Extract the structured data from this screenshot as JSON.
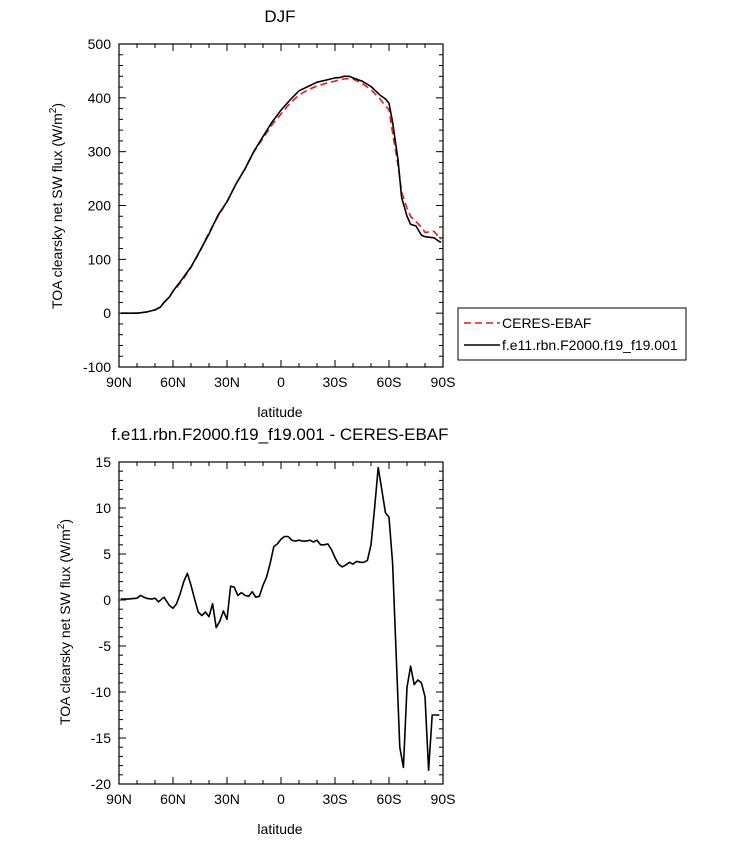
{
  "chart_data": [
    {
      "type": "line",
      "title": "DJF",
      "xlabel": "latitude",
      "ylabel_main": "TOA clearsky net SW flux (W/m",
      "ylabel_sup": "2",
      "ylabel_close": ")",
      "xlim": [
        90,
        -90
      ],
      "ylim": [
        -100,
        500
      ],
      "x_ticks": [
        90,
        60,
        30,
        0,
        -30,
        -60,
        -90
      ],
      "x_tick_labels": [
        "90N",
        "60N",
        "30N",
        "0",
        "30S",
        "60S",
        "90S"
      ],
      "y_ticks": [
        -100,
        0,
        100,
        200,
        300,
        400,
        500
      ],
      "y_tick_labels": [
        "-100",
        "0",
        "100",
        "200",
        "300",
        "400",
        "500"
      ],
      "legend": {
        "placement": "right"
      },
      "series": [
        {
          "name": "CERES-EBAF",
          "color": "#e41a1c",
          "dash": "dashed",
          "x": [
            89,
            85,
            80,
            75,
            70,
            67,
            65,
            62,
            60,
            55,
            50,
            45,
            40,
            35,
            30,
            25,
            20,
            15,
            10,
            5,
            0,
            -5,
            -10,
            -15,
            -20,
            -25,
            -30,
            -33,
            -35,
            -38,
            -40,
            -45,
            -50,
            -55,
            -58,
            -60,
            -62,
            -65,
            -67,
            -70,
            -72,
            -75,
            -78,
            -80,
            -85,
            -88,
            -89
          ],
          "y": [
            0,
            0,
            0,
            2,
            6,
            12,
            20,
            30,
            40,
            60,
            85,
            115,
            150,
            180,
            207,
            240,
            268,
            300,
            325,
            350,
            370,
            390,
            405,
            415,
            422,
            427,
            431,
            434,
            435,
            436,
            435,
            427,
            415,
            398,
            385,
            378,
            335,
            275,
            225,
            195,
            180,
            170,
            160,
            150,
            152,
            140,
            138
          ]
        },
        {
          "name": "f.e11.rbn.F2000.f19_f19.001",
          "color": "#000000",
          "dash": "solid",
          "x": [
            89,
            85,
            80,
            75,
            70,
            67,
            65,
            62,
            60,
            55,
            50,
            45,
            40,
            35,
            30,
            25,
            20,
            15,
            10,
            5,
            0,
            -5,
            -10,
            -15,
            -20,
            -25,
            -30,
            -33,
            -35,
            -38,
            -40,
            -45,
            -50,
            -55,
            -58,
            -60,
            -62,
            -65,
            -67,
            -70,
            -72,
            -75,
            -78,
            -80,
            -85,
            -88,
            -89
          ],
          "y": [
            0,
            0,
            0,
            2,
            6,
            11,
            20,
            30,
            41,
            63,
            86,
            116,
            147,
            182,
            207,
            240,
            268,
            301,
            328,
            355,
            377,
            396,
            413,
            421,
            429,
            433,
            437,
            438,
            440,
            440,
            437,
            431,
            421,
            405,
            398,
            390,
            355,
            285,
            215,
            180,
            165,
            162,
            145,
            142,
            140,
            133,
            132
          ]
        }
      ]
    },
    {
      "type": "line",
      "title": "f.e11.rbn.F2000.f19_f19.001 - CERES-EBAF",
      "xlabel": "latitude",
      "ylabel_main": "TOA clearsky net SW flux (W/m",
      "ylabel_sup": "2",
      "ylabel_close": ")",
      "xlim": [
        90,
        -90
      ],
      "ylim": [
        -20,
        15
      ],
      "x_ticks": [
        90,
        60,
        30,
        0,
        -30,
        -60,
        -90
      ],
      "x_tick_labels": [
        "90N",
        "60N",
        "30N",
        "0",
        "30S",
        "60S",
        "90S"
      ],
      "y_ticks": [
        -20,
        -15,
        -10,
        -5,
        0,
        5,
        10,
        15
      ],
      "y_tick_labels": [
        "-20",
        "-15",
        "-10",
        "-5",
        "0",
        "5",
        "10",
        "15"
      ],
      "series": [
        {
          "color": "#000000",
          "dash": "solid",
          "x": [
            89,
            85,
            80,
            78,
            75,
            72,
            70,
            68,
            65,
            62,
            60,
            58,
            56,
            54,
            52,
            50,
            48,
            46,
            44,
            42,
            40,
            38,
            36,
            34,
            32,
            30,
            28,
            26,
            24,
            22,
            20,
            18,
            16,
            14,
            12,
            10,
            8,
            6,
            4,
            2,
            0,
            -2,
            -4,
            -6,
            -8,
            -10,
            -12,
            -14,
            -16,
            -18,
            -20,
            -22,
            -24,
            -26,
            -28,
            -30,
            -32,
            -34,
            -36,
            -38,
            -40,
            -42,
            -44,
            -46,
            -48,
            -50,
            -52,
            -54,
            -56,
            -58,
            -60,
            -62,
            -64,
            -66,
            -68,
            -70,
            -72,
            -74,
            -76,
            -78,
            -80,
            -82,
            -84,
            -86,
            -88
          ],
          "y": [
            0.1,
            0.1,
            0.2,
            0.5,
            0.2,
            0.1,
            0.2,
            -0.2,
            0.3,
            -0.6,
            -0.9,
            -0.4,
            0.7,
            2.0,
            2.9,
            1.6,
            0.1,
            -1.3,
            -1.7,
            -1.3,
            -1.8,
            -0.4,
            -3.0,
            -2.3,
            -1.2,
            -2.1,
            1.5,
            1.4,
            0.5,
            0.8,
            0.5,
            0.4,
            0.9,
            0.3,
            0.4,
            1.6,
            2.5,
            4.0,
            5.8,
            6.1,
            6.6,
            6.9,
            6.9,
            6.5,
            6.4,
            6.5,
            6.4,
            6.4,
            6.5,
            6.3,
            6.5,
            6.0,
            6.0,
            6.1,
            5.5,
            4.6,
            3.9,
            3.6,
            3.8,
            4.1,
            3.9,
            4.2,
            4.1,
            4.1,
            4.3,
            6.0,
            10.0,
            14.4,
            12.0,
            9.5,
            9.0,
            4.0,
            -6.0,
            -16.0,
            -18.2,
            -9.5,
            -7.2,
            -9.2,
            -8.7,
            -9.0,
            -10.5,
            -18.5,
            -12.5,
            -12.5,
            -12.5
          ]
        }
      ]
    }
  ]
}
